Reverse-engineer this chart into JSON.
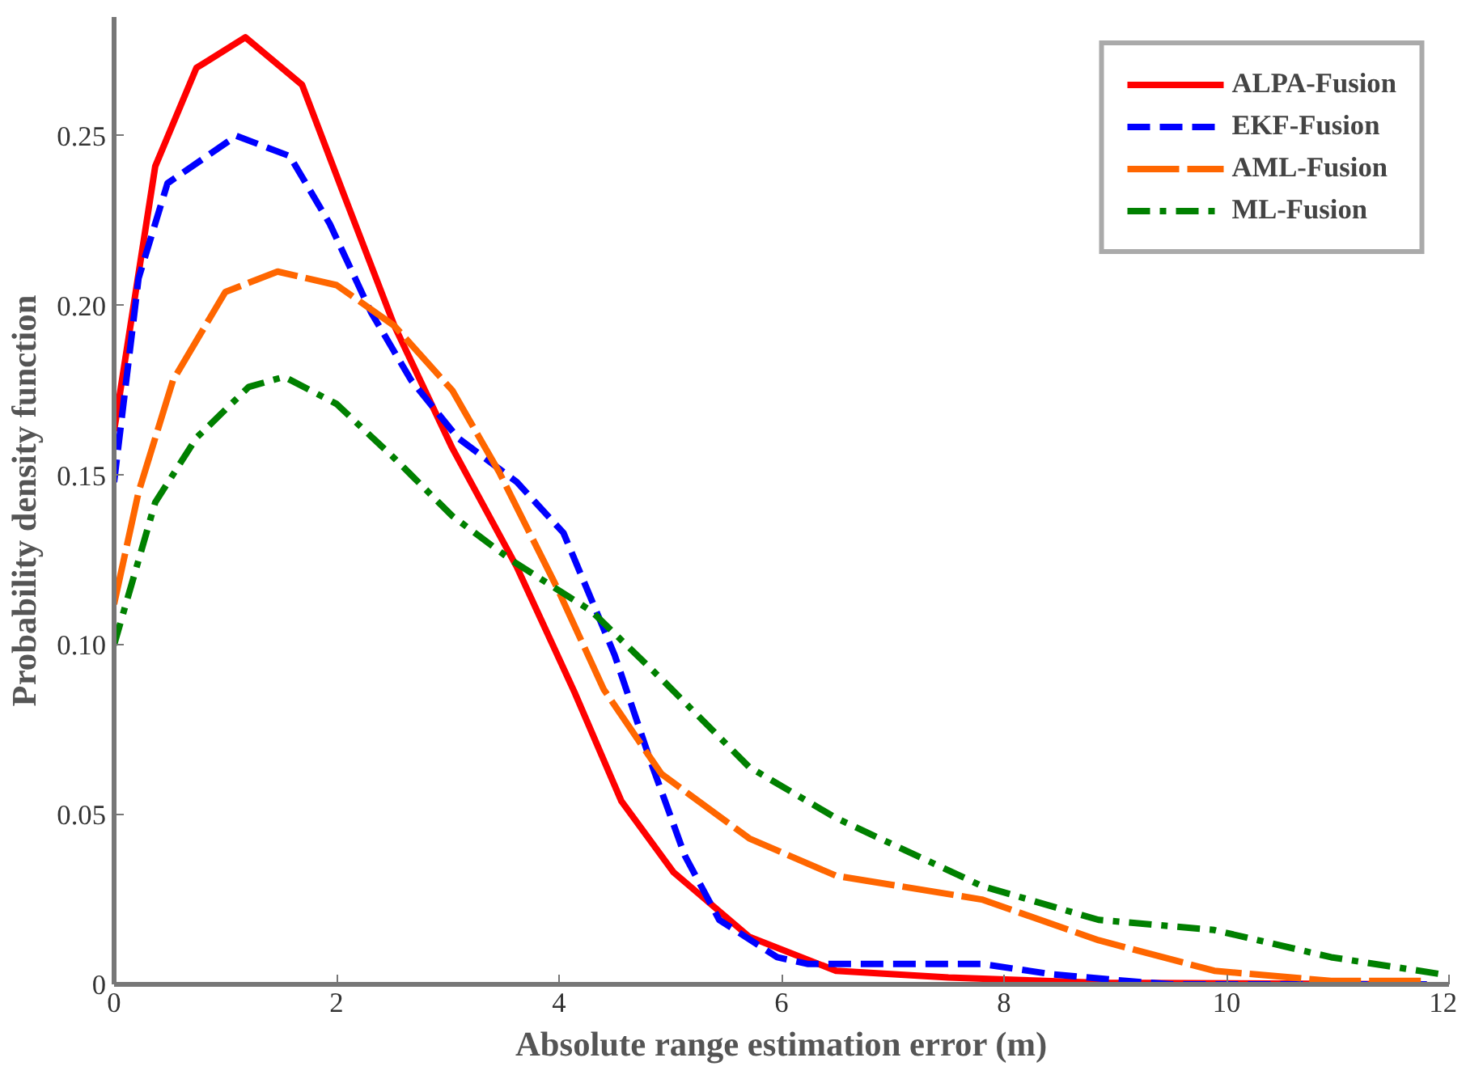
{
  "chart_data": {
    "type": "line",
    "xlabel": "Absolute range estimation error (m)",
    "ylabel": "Probability density function",
    "xlim": [
      0,
      12
    ],
    "ylim": [
      0,
      0.285
    ],
    "xticks": [
      0,
      2,
      4,
      6,
      8,
      10,
      12
    ],
    "yticks": [
      {
        "value": 0,
        "label": "0"
      },
      0.05,
      {
        "value": 0.1,
        "label": "0.10"
      },
      0.15,
      {
        "value": 0.2,
        "label": "0.20"
      },
      0.25
    ],
    "grid": false,
    "legend": "top right",
    "marker": "none",
    "series": [
      {
        "name": "ALPA-Fusion",
        "color": "#ff0000",
        "line_style": "solid",
        "x": [
          0,
          0.37,
          0.74,
          1.18,
          1.69,
          2.05,
          2.52,
          3.04,
          3.62,
          4.14,
          4.56,
          5.03,
          5.71,
          6.49,
          7.5,
          8.85,
          11.8
        ],
        "values": [
          0.163,
          0.241,
          0.27,
          0.279,
          0.265,
          0.234,
          0.194,
          0.158,
          0.123,
          0.086,
          0.054,
          0.033,
          0.014,
          0.004,
          0.002,
          0.0005,
          0
        ]
      },
      {
        "name": "EKF-Fusion",
        "color": "#0000ff",
        "line_style": "dashed",
        "x": [
          0,
          0.22,
          0.48,
          1.1,
          1.58,
          1.94,
          2.31,
          2.67,
          3.09,
          3.62,
          4.04,
          4.5,
          4.82,
          5.13,
          5.44,
          5.96,
          6.24,
          7.8,
          8.43,
          9.1,
          9.5,
          11.8
        ],
        "values": [
          0.148,
          0.208,
          0.236,
          0.25,
          0.244,
          0.224,
          0.198,
          0.178,
          0.161,
          0.148,
          0.133,
          0.097,
          0.066,
          0.038,
          0.019,
          0.008,
          0.006,
          0.006,
          0.003,
          0.001,
          0,
          0
        ]
      },
      {
        "name": "AML-Fusion",
        "color": "#ff6600",
        "line_style": "longdash",
        "x": [
          0,
          0.22,
          0.53,
          1.0,
          1.47,
          2.0,
          2.52,
          3.04,
          3.46,
          3.98,
          4.4,
          4.92,
          5.71,
          6.49,
          7.8,
          8.85,
          9.89,
          10.94,
          11.8
        ],
        "values": [
          0.112,
          0.145,
          0.178,
          0.204,
          0.21,
          0.206,
          0.194,
          0.175,
          0.151,
          0.117,
          0.087,
          0.062,
          0.043,
          0.032,
          0.025,
          0.013,
          0.004,
          0.001,
          0.001
        ]
      },
      {
        "name": "ML-Fusion",
        "color": "#008000",
        "line_style": "dashdot",
        "x": [
          0,
          0.37,
          0.74,
          1.21,
          1.53,
          2.0,
          2.52,
          3.04,
          3.57,
          4.29,
          4.92,
          5.71,
          6.49,
          7.8,
          8.85,
          9.89,
          10.94,
          11.93
        ],
        "values": [
          0.1,
          0.142,
          0.161,
          0.176,
          0.179,
          0.171,
          0.155,
          0.138,
          0.125,
          0.11,
          0.09,
          0.064,
          0.049,
          0.029,
          0.019,
          0.016,
          0.008,
          0.003
        ]
      }
    ]
  }
}
